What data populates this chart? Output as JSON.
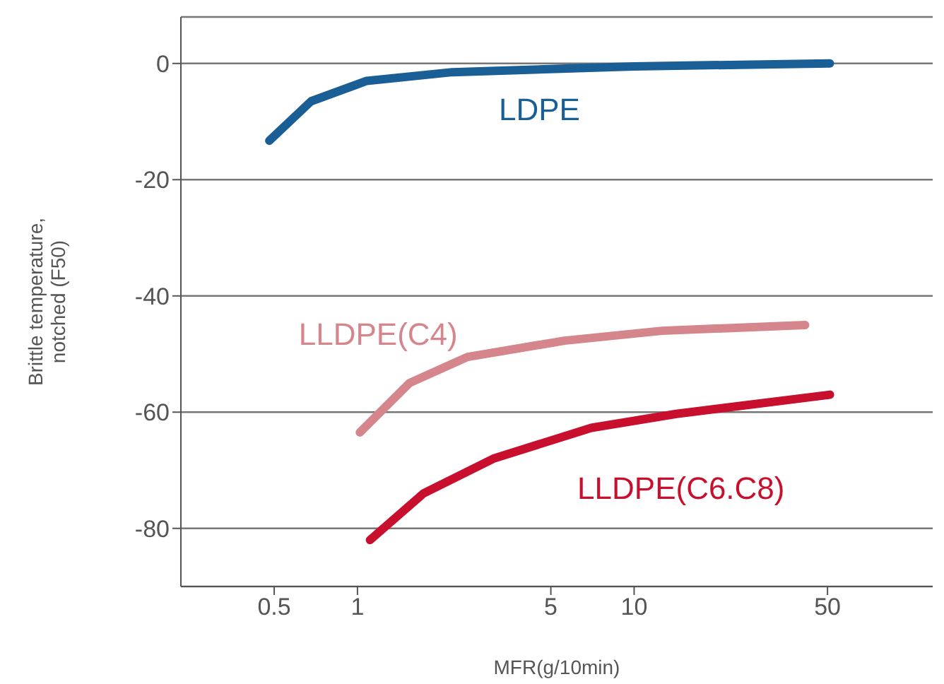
{
  "chart_data": {
    "type": "line",
    "xlabel": "MFR(g/10min)",
    "ylabel": "Brittle temperature, notched (F50)",
    "log": "x",
    "xlim": [
      0.23,
      120
    ],
    "xticks": [
      0.5,
      1,
      5,
      10,
      50
    ],
    "ylim": [
      -90,
      8
    ],
    "yticks": [
      0,
      -20,
      -40,
      -60,
      -80
    ],
    "grid": "y",
    "legend": false,
    "marker": "none",
    "line_style": "solid",
    "series": [
      {
        "name": "LDPE",
        "color": "#1a5e96",
        "x": [
          0.48,
          0.68,
          1.08,
          2.2,
          10,
          51
        ],
        "values": [
          -13.3,
          -6.5,
          -3,
          -1.5,
          -0.5,
          0
        ]
      },
      {
        "name": "LLDPE(C4)",
        "color": "#d4868c",
        "x": [
          1.02,
          1.54,
          2.5,
          5.6,
          12.6,
          41.5
        ],
        "values": [
          -63.5,
          -55,
          -50.5,
          -47.7,
          -46,
          -45
        ]
      },
      {
        "name": "LLDPE(C6.C8)",
        "color": "#c8102e",
        "x": [
          1.11,
          1.73,
          3.1,
          7,
          14.2,
          51
        ],
        "values": [
          -82,
          -74,
          -68,
          -62.7,
          -60.3,
          -57
        ]
      }
    ]
  }
}
